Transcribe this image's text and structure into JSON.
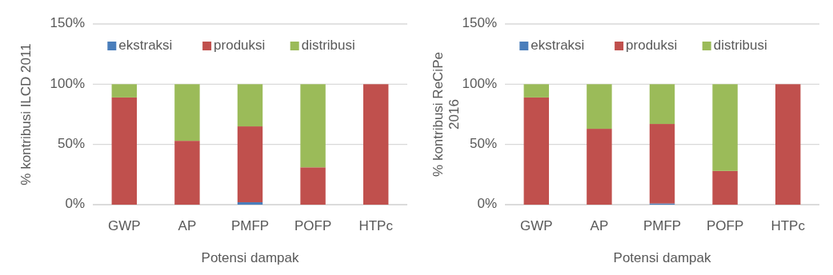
{
  "chart_data": [
    {
      "type": "bar",
      "stacked": true,
      "xlabel": "Potensi dampak",
      "ylabel": "% kontribusi ILCD 2011",
      "categories": [
        "GWP",
        "AP",
        "PMFP",
        "POFP",
        "HTPc"
      ],
      "series": [
        {
          "name": "ekstraksi",
          "color": "#4a7ebb",
          "values": [
            0,
            0,
            2,
            0,
            0
          ]
        },
        {
          "name": "produksi",
          "color": "#c0504d",
          "values": [
            89,
            53,
            63,
            31,
            100
          ]
        },
        {
          "name": "distribusi",
          "color": "#9bbb59",
          "values": [
            11,
            47,
            35,
            69,
            0
          ]
        }
      ],
      "ylim": [
        0,
        150
      ],
      "yticks": [
        {
          "value": 0,
          "label": "0%"
        },
        {
          "value": 50,
          "label": "50%"
        },
        {
          "value": 100,
          "label": "100%"
        },
        {
          "value": 150,
          "label": "150%"
        }
      ],
      "grid": "y",
      "legend": "top"
    },
    {
      "type": "bar",
      "stacked": true,
      "xlabel": "Potensi dampak",
      "ylabel": "% kontribusi ReCiPe 2016",
      "categories": [
        "GWP",
        "AP",
        "PMFP",
        "POFP",
        "HTPc"
      ],
      "series": [
        {
          "name": "ekstraksi",
          "color": "#4a7ebb",
          "values": [
            0,
            0,
            1,
            0,
            0
          ]
        },
        {
          "name": "produksi",
          "color": "#c0504d",
          "values": [
            89,
            63,
            66,
            28,
            100
          ]
        },
        {
          "name": "distribusi",
          "color": "#9bbb59",
          "values": [
            11,
            37,
            33,
            72,
            0
          ]
        }
      ],
      "ylim": [
        0,
        150
      ],
      "yticks": [
        {
          "value": 0,
          "label": "0%"
        },
        {
          "value": 50,
          "label": "50%"
        },
        {
          "value": 100,
          "label": "100%"
        },
        {
          "value": 150,
          "label": "150%"
        }
      ],
      "grid": "y",
      "legend": "top"
    }
  ]
}
